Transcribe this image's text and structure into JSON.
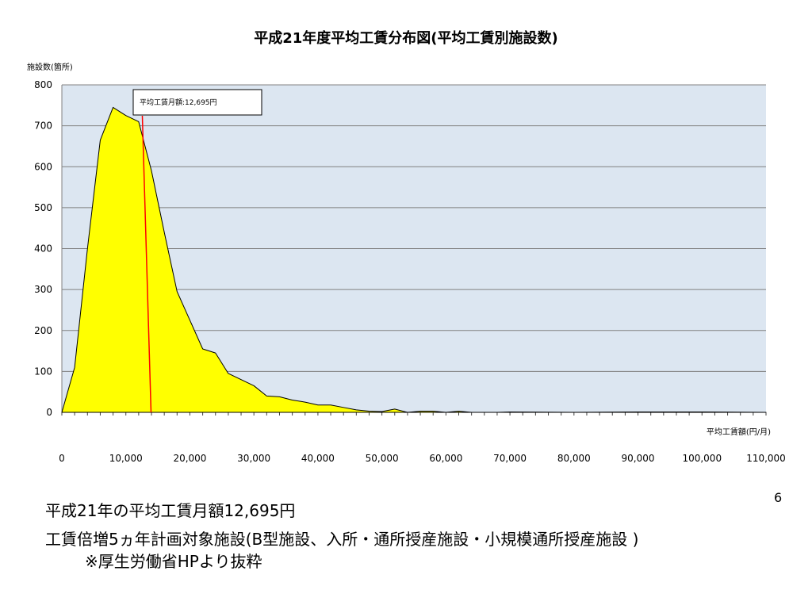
{
  "slide": {
    "title": "平成21年度平均工賃分布図(平均工賃別施設数)",
    "page_number": "6",
    "caption_lines": [
      "平成21年の平均工賃月額12,695円",
      "工賃倍増5ヵ年計画対象施設(B型施設、入所・通所授産施設・小規模通所授産施設 )",
      "※厚生労働省HPより抜粋"
    ]
  },
  "colors": {
    "plot_background": "#dce6f1",
    "area_fill": "#ffff00",
    "area_line": "#000000",
    "gridline": "#808080",
    "average_line": "#ff0000"
  },
  "chart_data": {
    "type": "area",
    "title": "平成21年度平均工賃分布図(平均工賃別施設数)",
    "ylabel": "施設数(箇所)",
    "xlabel": "平均工賃額(円/月)",
    "ylim": [
      0,
      800
    ],
    "xlim": [
      0,
      110000
    ],
    "yticks": [
      "0",
      "100",
      "200",
      "300",
      "400",
      "500",
      "600",
      "700",
      "800"
    ],
    "xticks": [
      "0",
      "10,000",
      "20,000",
      "30,000",
      "40,000",
      "50,000",
      "60,000",
      "70,000",
      "80,000",
      "90,000",
      "100,000",
      "110,000"
    ],
    "grid": true,
    "legend": "none",
    "series": [
      {
        "x": [
          0,
          2000,
          4000,
          6000,
          8000,
          10000,
          12000,
          14000,
          16000,
          18000,
          20000,
          22000,
          24000,
          26000,
          28000,
          30000,
          32000,
          34000,
          36000,
          38000,
          40000,
          42000,
          44000,
          46000,
          48000,
          50000,
          52000,
          54000,
          56000,
          58000,
          60000,
          62000,
          64000,
          66000,
          68000,
          70000,
          80000,
          90000,
          100000,
          110000
        ],
        "values": [
          0,
          110,
          400,
          665,
          745,
          725,
          710,
          590,
          440,
          295,
          225,
          155,
          145,
          95,
          80,
          65,
          40,
          38,
          30,
          25,
          18,
          18,
          12,
          6,
          3,
          2,
          8,
          0,
          3,
          3,
          0,
          3,
          0,
          0,
          0,
          1,
          0,
          1,
          1,
          0
        ]
      }
    ],
    "annotations": [
      {
        "type": "vline",
        "x": 12695,
        "label": "平均工賃月額:12,695円"
      }
    ]
  }
}
